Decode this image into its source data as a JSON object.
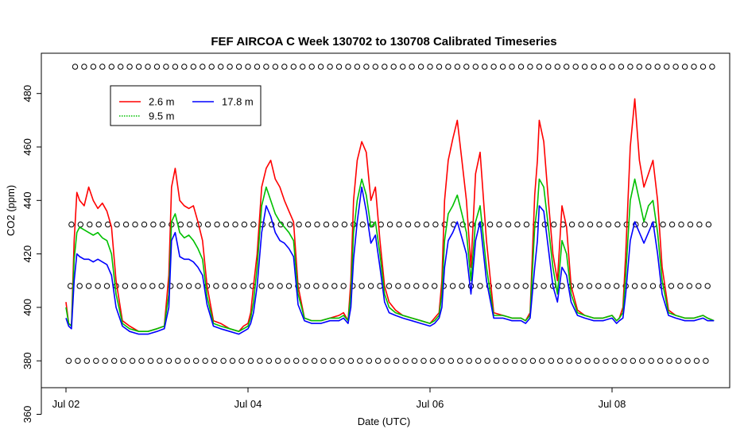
{
  "chart_data": {
    "type": "line",
    "title": "FEF AIRCOA C  Week 130702 to 130708  Calibrated Timeseries",
    "xlabel": "Date (UTC)",
    "ylabel": "CO2 (ppm)",
    "xlim": [
      -0.2,
      7.2
    ],
    "ylim": [
      368,
      492
    ],
    "x_ticks": [
      {
        "value": 0,
        "label": "Jul 02"
      },
      {
        "value": 2,
        "label": "Jul 04"
      },
      {
        "value": 4,
        "label": "Jul 06"
      },
      {
        "value": 6,
        "label": "Jul 08"
      }
    ],
    "y_ticks": [
      360,
      380,
      400,
      420,
      440,
      460,
      480
    ],
    "legend": {
      "position": "top-left",
      "entries": [
        {
          "label": "2.6 m",
          "color": "#ff0000",
          "style": "solid"
        },
        {
          "label": "9.5 m",
          "color": "#00c000",
          "style": "dotted"
        },
        {
          "label": "17.8 m",
          "color": "#0000ff",
          "style": "solid"
        }
      ]
    },
    "marker_rows": [
      {
        "y": 490,
        "from": 0.1,
        "to": 7.12,
        "step": 0.1
      },
      {
        "y": 431,
        "from": 0.06,
        "to": 7.12,
        "step": 0.1
      },
      {
        "y": 408,
        "from": 0.05,
        "to": 7.12,
        "step": 0.1
      },
      {
        "y": 380,
        "from": 0.03,
        "to": 7.12,
        "step": 0.1
      }
    ],
    "series": [
      {
        "name": "2.6 m",
        "color": "#ff0000",
        "x": [
          0.0,
          0.03,
          0.06,
          0.09,
          0.12,
          0.15,
          0.2,
          0.25,
          0.3,
          0.35,
          0.4,
          0.45,
          0.5,
          0.55,
          0.62,
          0.7,
          0.8,
          0.9,
          1.0,
          1.08,
          1.13,
          1.16,
          1.2,
          1.25,
          1.3,
          1.35,
          1.4,
          1.45,
          1.5,
          1.55,
          1.62,
          1.7,
          1.8,
          1.9,
          1.95,
          2.0,
          2.03,
          2.06,
          2.1,
          2.15,
          2.2,
          2.25,
          2.3,
          2.35,
          2.4,
          2.45,
          2.5,
          2.55,
          2.62,
          2.7,
          2.8,
          2.9,
          3.0,
          3.05,
          3.1,
          3.13,
          3.16,
          3.2,
          3.25,
          3.3,
          3.35,
          3.4,
          3.45,
          3.5,
          3.55,
          3.62,
          3.7,
          3.8,
          3.9,
          4.0,
          4.05,
          4.1,
          4.13,
          4.16,
          4.2,
          4.25,
          4.3,
          4.35,
          4.4,
          4.45,
          4.5,
          4.55,
          4.62,
          4.7,
          4.8,
          4.9,
          5.0,
          5.05,
          5.1,
          5.15,
          5.18,
          5.2,
          5.25,
          5.3,
          5.35,
          5.4,
          5.45,
          5.5,
          5.55,
          5.62,
          5.7,
          5.8,
          5.9,
          6.0,
          6.05,
          6.08,
          6.12,
          6.15,
          6.2,
          6.25,
          6.3,
          6.35,
          6.4,
          6.45,
          6.5,
          6.55,
          6.62,
          6.7,
          6.8,
          6.9,
          7.0,
          7.05,
          7.12
        ],
        "values": [
          402,
          394,
          393,
          425,
          443,
          440,
          438,
          445,
          440,
          437,
          439,
          436,
          430,
          410,
          395,
          393,
          391,
          391,
          392,
          393,
          412,
          445,
          452,
          440,
          438,
          437,
          438,
          432,
          425,
          408,
          395,
          394,
          392,
          391,
          393,
          394,
          398,
          408,
          420,
          445,
          452,
          455,
          448,
          445,
          440,
          436,
          432,
          408,
          396,
          395,
          395,
          396,
          397,
          398,
          395,
          410,
          440,
          455,
          462,
          458,
          440,
          445,
          425,
          408,
          402,
          399,
          397,
          396,
          395,
          394,
          396,
          398,
          410,
          440,
          455,
          463,
          470,
          455,
          440,
          415,
          450,
          458,
          425,
          398,
          397,
          396,
          396,
          395,
          398,
          442,
          455,
          470,
          462,
          440,
          420,
          410,
          438,
          430,
          408,
          399,
          397,
          396,
          396,
          397,
          395,
          396,
          400,
          420,
          460,
          478,
          455,
          445,
          450,
          455,
          440,
          415,
          399,
          397,
          396,
          396,
          397,
          396,
          395
        ]
      },
      {
        "name": "9.5 m",
        "color": "#00c000",
        "x": [
          0.0,
          0.03,
          0.06,
          0.09,
          0.12,
          0.15,
          0.2,
          0.25,
          0.3,
          0.35,
          0.4,
          0.45,
          0.5,
          0.55,
          0.62,
          0.7,
          0.8,
          0.9,
          1.0,
          1.08,
          1.13,
          1.16,
          1.2,
          1.25,
          1.3,
          1.35,
          1.4,
          1.45,
          1.5,
          1.55,
          1.62,
          1.7,
          1.8,
          1.9,
          1.95,
          2.0,
          2.03,
          2.06,
          2.1,
          2.15,
          2.2,
          2.25,
          2.3,
          2.35,
          2.4,
          2.45,
          2.5,
          2.55,
          2.62,
          2.7,
          2.8,
          2.9,
          3.0,
          3.05,
          3.1,
          3.13,
          3.16,
          3.2,
          3.25,
          3.3,
          3.35,
          3.4,
          3.45,
          3.5,
          3.55,
          3.62,
          3.7,
          3.8,
          3.9,
          4.0,
          4.05,
          4.1,
          4.13,
          4.16,
          4.2,
          4.25,
          4.3,
          4.35,
          4.4,
          4.45,
          4.5,
          4.55,
          4.62,
          4.7,
          4.8,
          4.9,
          5.0,
          5.05,
          5.1,
          5.15,
          5.18,
          5.2,
          5.25,
          5.3,
          5.35,
          5.4,
          5.45,
          5.5,
          5.55,
          5.62,
          5.7,
          5.8,
          5.9,
          6.0,
          6.05,
          6.08,
          6.12,
          6.15,
          6.2,
          6.25,
          6.3,
          6.35,
          6.4,
          6.45,
          6.5,
          6.55,
          6.62,
          6.7,
          6.8,
          6.9,
          7.0,
          7.05,
          7.12
        ],
        "values": [
          400,
          394,
          393,
          418,
          428,
          430,
          429,
          428,
          427,
          428,
          426,
          425,
          420,
          405,
          394,
          392,
          391,
          391,
          392,
          393,
          405,
          432,
          435,
          428,
          426,
          427,
          425,
          422,
          418,
          404,
          394,
          393,
          392,
          391,
          392,
          393,
          396,
          402,
          415,
          438,
          445,
          440,
          435,
          432,
          430,
          428,
          425,
          405,
          396,
          395,
          395,
          396,
          396,
          397,
          395,
          405,
          428,
          440,
          448,
          442,
          430,
          432,
          420,
          405,
          400,
          398,
          397,
          396,
          395,
          394,
          395,
          397,
          405,
          425,
          435,
          438,
          442,
          435,
          428,
          410,
          432,
          438,
          415,
          397,
          397,
          396,
          396,
          395,
          397,
          430,
          438,
          448,
          445,
          430,
          415,
          405,
          425,
          420,
          405,
          398,
          397,
          396,
          396,
          397,
          395,
          396,
          398,
          412,
          440,
          448,
          440,
          432,
          438,
          440,
          428,
          410,
          398,
          397,
          396,
          396,
          397,
          396,
          395
        ]
      },
      {
        "name": "17.8 m",
        "color": "#0000ff",
        "x": [
          0.0,
          0.03,
          0.06,
          0.09,
          0.12,
          0.15,
          0.2,
          0.25,
          0.3,
          0.35,
          0.4,
          0.45,
          0.5,
          0.55,
          0.62,
          0.7,
          0.8,
          0.9,
          1.0,
          1.08,
          1.13,
          1.16,
          1.2,
          1.25,
          1.3,
          1.35,
          1.4,
          1.45,
          1.5,
          1.55,
          1.62,
          1.7,
          1.8,
          1.9,
          1.95,
          2.0,
          2.03,
          2.06,
          2.1,
          2.15,
          2.2,
          2.25,
          2.3,
          2.35,
          2.4,
          2.45,
          2.5,
          2.55,
          2.62,
          2.7,
          2.8,
          2.9,
          3.0,
          3.05,
          3.1,
          3.13,
          3.16,
          3.2,
          3.25,
          3.3,
          3.35,
          3.4,
          3.45,
          3.5,
          3.55,
          3.62,
          3.7,
          3.8,
          3.9,
          4.0,
          4.05,
          4.1,
          4.13,
          4.16,
          4.2,
          4.25,
          4.3,
          4.35,
          4.4,
          4.45,
          4.5,
          4.55,
          4.62,
          4.7,
          4.8,
          4.9,
          5.0,
          5.05,
          5.1,
          5.15,
          5.18,
          5.2,
          5.25,
          5.3,
          5.35,
          5.4,
          5.45,
          5.5,
          5.55,
          5.62,
          5.7,
          5.8,
          5.9,
          6.0,
          6.05,
          6.08,
          6.12,
          6.15,
          6.2,
          6.25,
          6.3,
          6.35,
          6.4,
          6.45,
          6.5,
          6.55,
          6.62,
          6.7,
          6.8,
          6.9,
          7.0,
          7.05,
          7.12
        ],
        "values": [
          396,
          393,
          392,
          410,
          420,
          419,
          418,
          418,
          417,
          418,
          417,
          416,
          412,
          400,
          393,
          391,
          390,
          390,
          391,
          392,
          400,
          425,
          428,
          419,
          418,
          418,
          417,
          415,
          412,
          401,
          393,
          392,
          391,
          390,
          391,
          392,
          394,
          398,
          408,
          428,
          438,
          434,
          428,
          425,
          424,
          422,
          419,
          401,
          395,
          394,
          394,
          395,
          395,
          396,
          394,
          400,
          418,
          432,
          445,
          436,
          424,
          427,
          415,
          402,
          398,
          397,
          396,
          395,
          394,
          393,
          394,
          396,
          400,
          415,
          425,
          428,
          432,
          426,
          420,
          405,
          425,
          432,
          410,
          396,
          396,
          395,
          395,
          394,
          396,
          415,
          425,
          438,
          436,
          422,
          408,
          402,
          415,
          412,
          402,
          397,
          396,
          395,
          395,
          396,
          394,
          395,
          396,
          405,
          425,
          432,
          428,
          424,
          428,
          432,
          420,
          405,
          397,
          396,
          395,
          395,
          396,
          395,
          395
        ]
      }
    ]
  }
}
